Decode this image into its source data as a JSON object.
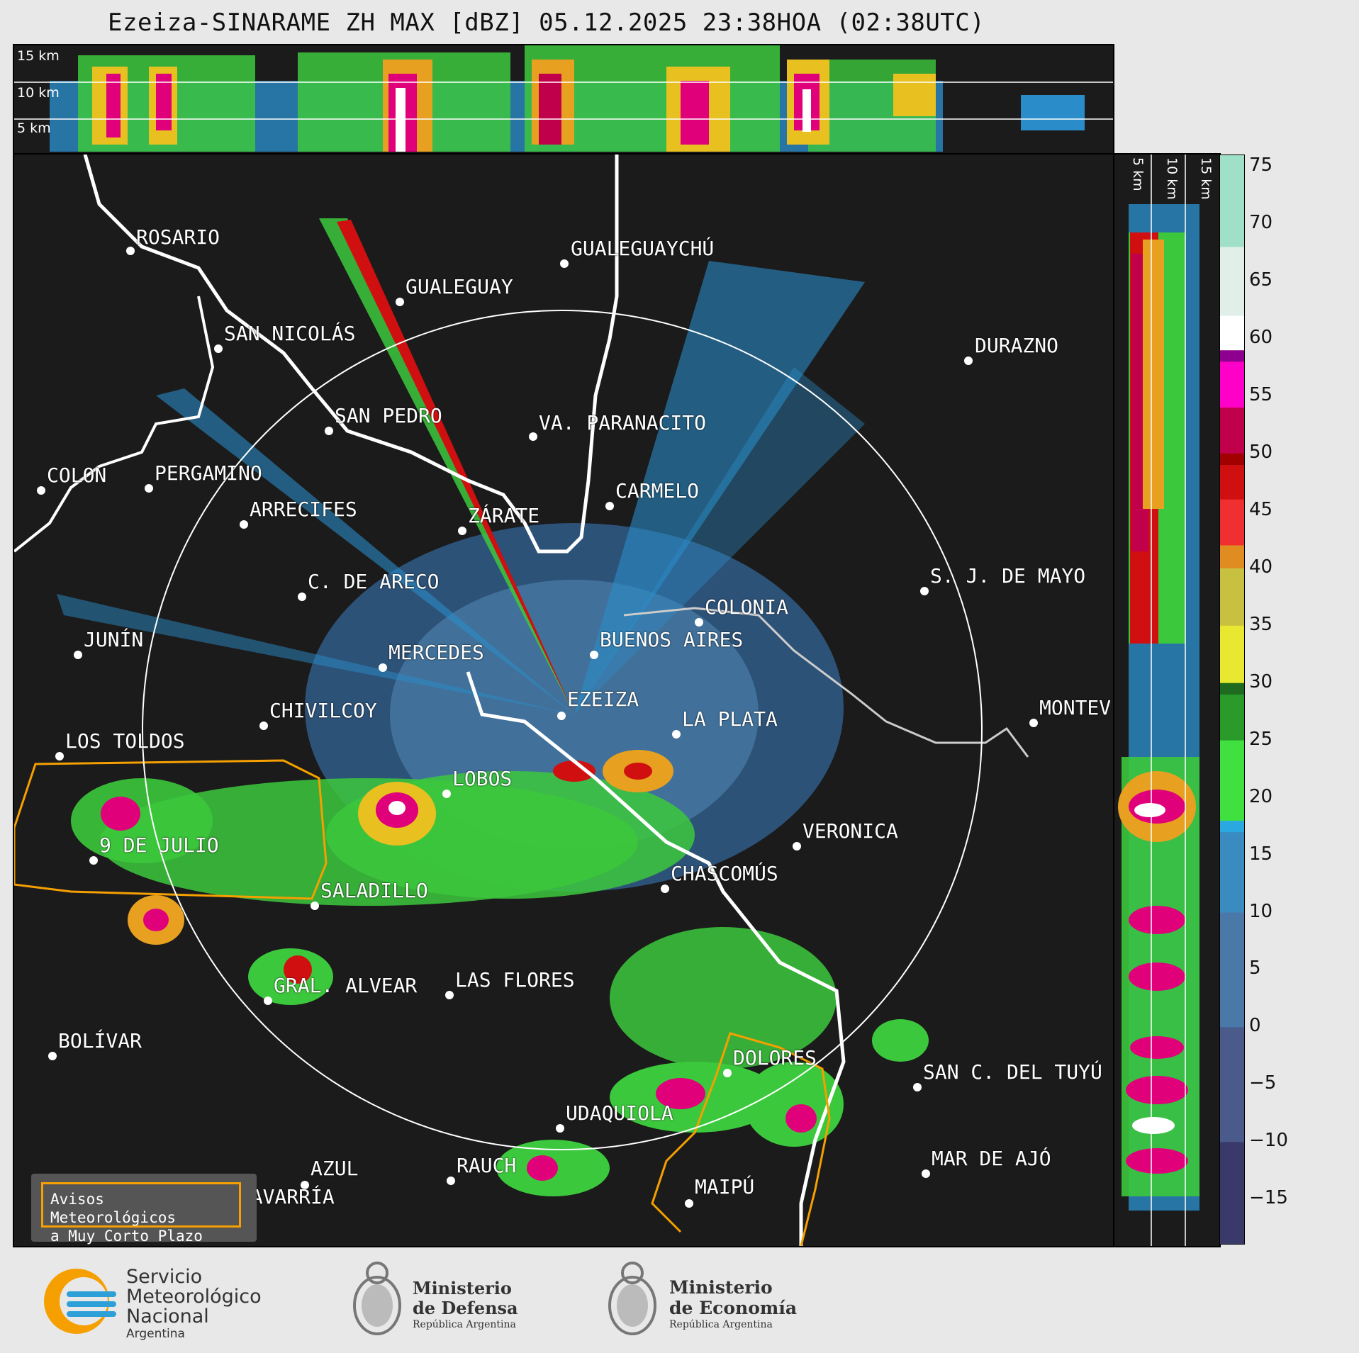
{
  "title": "Ezeiza-SINARAME ZH MAX [dBZ] 05.12.2025 23:38HOA (02:38UTC)",
  "height_levels": [
    "15 km",
    "10 km",
    "5 km"
  ],
  "height_levels_right": [
    "5 km",
    "10 km",
    "15 km"
  ],
  "cities": [
    {
      "name": "ROSARIO"
    },
    {
      "name": "GUALEGUAYCHÚ"
    },
    {
      "name": "GUALEGUAY"
    },
    {
      "name": "SAN NICOLÁS"
    },
    {
      "name": "DURAZNO"
    },
    {
      "name": "SAN PEDRO"
    },
    {
      "name": "VA. PARANACITO"
    },
    {
      "name": "COLON"
    },
    {
      "name": "PERGAMINO"
    },
    {
      "name": "CARMELO"
    },
    {
      "name": "ARRECIFES"
    },
    {
      "name": "ZÁRATE"
    },
    {
      "name": "S. J. DE MAYO"
    },
    {
      "name": "C. DE ARECO"
    },
    {
      "name": "COLONIA"
    },
    {
      "name": "JUNÍN"
    },
    {
      "name": "BUENOS AIRES"
    },
    {
      "name": "MERCEDES"
    },
    {
      "name": "EZEIZA"
    },
    {
      "name": "MONTEVIDEO"
    },
    {
      "name": "CHIVILCOY"
    },
    {
      "name": "LA PLATA"
    },
    {
      "name": "LOS TOLDOS"
    },
    {
      "name": "LOBOS"
    },
    {
      "name": "VERONICA"
    },
    {
      "name": "9 DE JULIO"
    },
    {
      "name": "CHASCOMÚS"
    },
    {
      "name": "SALADILLO"
    },
    {
      "name": "GRAL. ALVEAR"
    },
    {
      "name": "LAS FLORES"
    },
    {
      "name": "BOLÍVAR"
    },
    {
      "name": "DOLORES"
    },
    {
      "name": "SAN C. DEL TUYÚ"
    },
    {
      "name": "UDAQUIOLA"
    },
    {
      "name": "AZUL"
    },
    {
      "name": "RAUCH"
    },
    {
      "name": "MAR DE AJÓ"
    },
    {
      "name": "OLAVARRÍA"
    },
    {
      "name": "MAIPÚ"
    }
  ],
  "legend": {
    "line1": "Avisos Meteorológicos",
    "line2": "a Muy Corto Plazo"
  },
  "colorbar": {
    "unit": "dBZ",
    "ticks": [
      "75",
      "70",
      "65",
      "60",
      "55",
      "50",
      "45",
      "40",
      "35",
      "30",
      "25",
      "20",
      "15",
      "10",
      "5",
      "0",
      "−5",
      "−10",
      "−15"
    ],
    "min": -19,
    "max": 76
  },
  "logos": {
    "smn": {
      "line1": "Servicio",
      "line2": "Meteorológico",
      "line3": "Nacional",
      "line4": "Argentina"
    },
    "defensa": {
      "line1": "Ministerio",
      "line2": "de Defensa",
      "line3": "República Argentina"
    },
    "economia": {
      "line1": "Ministerio",
      "line2": "de Economía",
      "line3": "República Argentina"
    }
  },
  "colors": {
    "background": "#1b1b1b",
    "coast": "#ffffff",
    "warning": "#f5a000",
    "range_ring": "#ffffff"
  }
}
